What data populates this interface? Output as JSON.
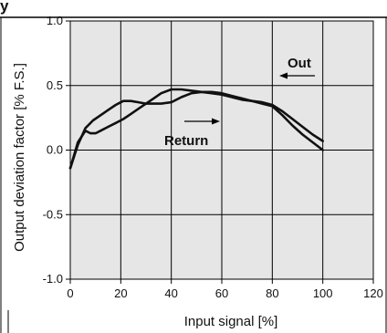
{
  "chart_data": {
    "type": "line",
    "header_fragment": "y",
    "xlabel": "Input signal [%]",
    "ylabel": "Output deviation factor [% F.S.]",
    "xlim": [
      0,
      120
    ],
    "ylim": [
      -1.0,
      1.0
    ],
    "x_ticks": [
      "0",
      "20",
      "40",
      "60",
      "80",
      "100",
      "120"
    ],
    "y_ticks": [
      "1.0",
      "0.5",
      "0.0",
      "-0.5",
      "-1.0"
    ],
    "grid": true,
    "plot_background": "#e6e6e6",
    "line_color": "#111111",
    "series": [
      {
        "name": "Out",
        "x": [
          0,
          3,
          6,
          9,
          12,
          15,
          18,
          21,
          24,
          27,
          30,
          33,
          36,
          40,
          44,
          48,
          52,
          56,
          60,
          64,
          68,
          72,
          76,
          80,
          84,
          88,
          92,
          96,
          100
        ],
        "y": [
          -0.14,
          0.04,
          0.17,
          0.23,
          0.27,
          0.31,
          0.35,
          0.38,
          0.38,
          0.37,
          0.36,
          0.36,
          0.36,
          0.37,
          0.41,
          0.44,
          0.45,
          0.44,
          0.43,
          0.41,
          0.39,
          0.38,
          0.37,
          0.35,
          0.3,
          0.24,
          0.18,
          0.12,
          0.07
        ]
      },
      {
        "name": "Return",
        "x": [
          0,
          3,
          6,
          8,
          10,
          12,
          15,
          18,
          21,
          24,
          27,
          30,
          33,
          36,
          40,
          44,
          48,
          52,
          56,
          60,
          64,
          68,
          72,
          76,
          80,
          84,
          88,
          92,
          96,
          100
        ],
        "y": [
          -0.14,
          0.06,
          0.15,
          0.13,
          0.13,
          0.15,
          0.18,
          0.21,
          0.24,
          0.28,
          0.32,
          0.36,
          0.4,
          0.44,
          0.47,
          0.47,
          0.46,
          0.45,
          0.45,
          0.44,
          0.42,
          0.4,
          0.38,
          0.36,
          0.34,
          0.27,
          0.19,
          0.12,
          0.06,
          0.0
        ]
      }
    ],
    "annotations": [
      {
        "text": "Out",
        "arrow": "left"
      },
      {
        "text": "Return",
        "arrow": "right"
      }
    ]
  }
}
